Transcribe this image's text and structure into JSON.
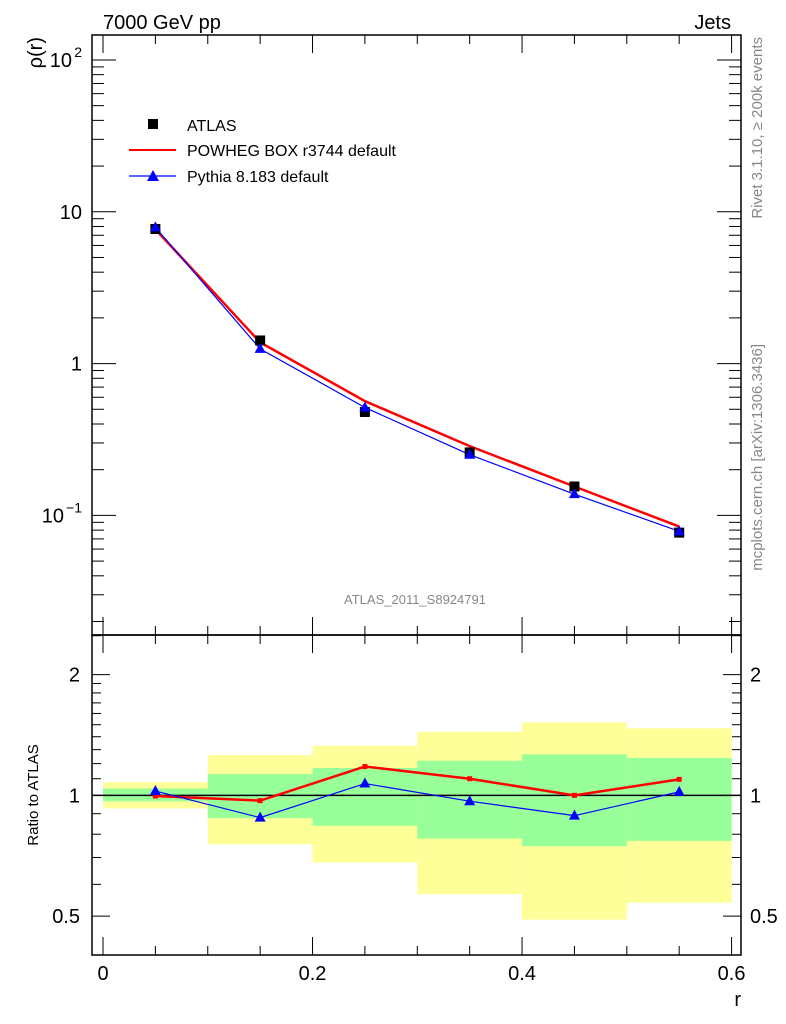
{
  "chart_data": [
    {
      "type": "line",
      "title_left": "7000 GeV pp",
      "title_right": "Jets",
      "ylabel": "ρ(r)",
      "xlabel": "r",
      "yscale": "log",
      "ylim": [
        0.0163,
        146
      ],
      "xlim": [
        -0.0105,
        0.609
      ],
      "y_tick_labels": [
        {
          "value": 100,
          "base": "10",
          "exp": "2"
        },
        {
          "value": 10,
          "base": "10",
          "exp": ""
        },
        {
          "value": 1,
          "base": "1",
          "exp": ""
        },
        {
          "value": 0.1,
          "base": "10",
          "exp": "−1"
        }
      ],
      "analysis_label": "ATLAS_2011_S8924791",
      "side_label_top": "Rivet 3.1.10, ≥ 200k events",
      "side_label_bottom": "mcplots.cern.ch [arXiv:1306.3436]",
      "legend_placement": "top-left",
      "x": [
        0.05,
        0.15,
        0.25,
        0.35,
        0.45,
        0.55
      ],
      "series": [
        {
          "name": "ATLAS",
          "color": "#000000",
          "marker": "square",
          "values": [
            7.7,
            1.42,
            0.48,
            0.26,
            0.155,
            0.077
          ]
        },
        {
          "name": "POWHEG BOX r3744 default",
          "color": "#ff0000",
          "marker": "none",
          "values": [
            7.67,
            1.38,
            0.566,
            0.286,
            0.155,
            0.0844
          ]
        },
        {
          "name": "Pythia 8.183 default",
          "color": "#0000ff",
          "marker": "triangle",
          "values": [
            7.89,
            1.25,
            0.514,
            0.251,
            0.138,
            0.0785
          ]
        }
      ]
    },
    {
      "type": "line",
      "ylabel": "Ratio to ATLAS",
      "xlabel": "r",
      "yscale": "log",
      "ylim": [
        0.4,
        2.51
      ],
      "xlim": [
        -0.0105,
        0.609
      ],
      "y_ticks": [
        {
          "value": 0.5,
          "label": "0.5"
        },
        {
          "value": 1,
          "label": "1"
        },
        {
          "value": 2,
          "label": "2"
        }
      ],
      "x_ticks": [
        {
          "value": 0,
          "label": "0"
        },
        {
          "value": 0.2,
          "label": "0.2"
        },
        {
          "value": 0.4,
          "label": "0.4"
        },
        {
          "value": 0.6,
          "label": "0.6"
        }
      ],
      "x": [
        0.05,
        0.15,
        0.25,
        0.35,
        0.45,
        0.55
      ],
      "bins": [
        [
          0,
          0.1
        ],
        [
          0.1,
          0.2
        ],
        [
          0.2,
          0.3
        ],
        [
          0.3,
          0.4
        ],
        [
          0.4,
          0.5
        ],
        [
          0.5,
          0.6
        ]
      ],
      "band_outer": {
        "color": "#ffff99",
        "low": [
          0.928,
          0.755,
          0.68,
          0.567,
          0.49,
          0.54
        ],
        "high": [
          1.078,
          1.26,
          1.33,
          1.44,
          1.52,
          1.47
        ]
      },
      "band_inner": {
        "color": "#99ff99",
        "low": [
          0.966,
          0.877,
          0.84,
          0.78,
          0.747,
          0.77
        ],
        "high": [
          1.04,
          1.13,
          1.17,
          1.22,
          1.265,
          1.24
        ]
      },
      "series": [
        {
          "name": "POWHEG BOX r3744 default",
          "color": "#ff0000",
          "values": [
            0.996,
            0.97,
            1.18,
            1.1,
            1.0,
            1.096
          ]
        },
        {
          "name": "Pythia 8.183 default",
          "color": "#0000ff",
          "values": [
            1.025,
            0.88,
            1.07,
            0.967,
            0.89,
            1.02
          ]
        }
      ]
    }
  ]
}
